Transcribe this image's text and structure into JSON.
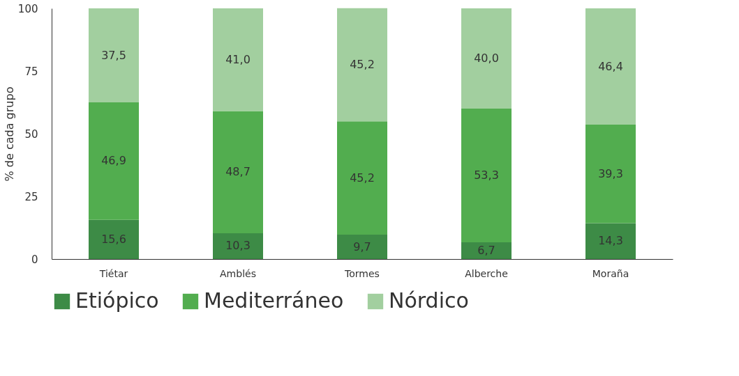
{
  "chart_data": {
    "type": "bar",
    "stacked": true,
    "ylabel": "% de cada grupo",
    "categories": [
      "Tiétar",
      "Amblés",
      "Tormes",
      "Alberche",
      "Moraña"
    ],
    "ylim": [
      0,
      100
    ],
    "yticks": [
      0,
      25,
      50,
      75,
      100
    ],
    "grid": false,
    "legend": "bottom",
    "series": [
      {
        "name": "Etiópico",
        "color": "#3d8b46",
        "values": [
          15.6,
          10.3,
          9.7,
          6.7,
          14.3
        ],
        "value_labels": [
          "15,6",
          "10,3",
          "9,7",
          "6,7",
          "14,3"
        ]
      },
      {
        "name": "Mediterráneo",
        "color": "#52ad4f",
        "values": [
          46.9,
          48.7,
          45.2,
          53.3,
          39.3
        ],
        "value_labels": [
          "46,9",
          "48,7",
          "45,2",
          "53,3",
          "39,3"
        ]
      },
      {
        "name": "Nórdico",
        "color": "#a2cf9f",
        "values": [
          37.5,
          41.0,
          45.2,
          40.0,
          46.4
        ],
        "value_labels": [
          "37,5",
          "41,0",
          "45,2",
          "40,0",
          "46,4"
        ]
      }
    ]
  }
}
